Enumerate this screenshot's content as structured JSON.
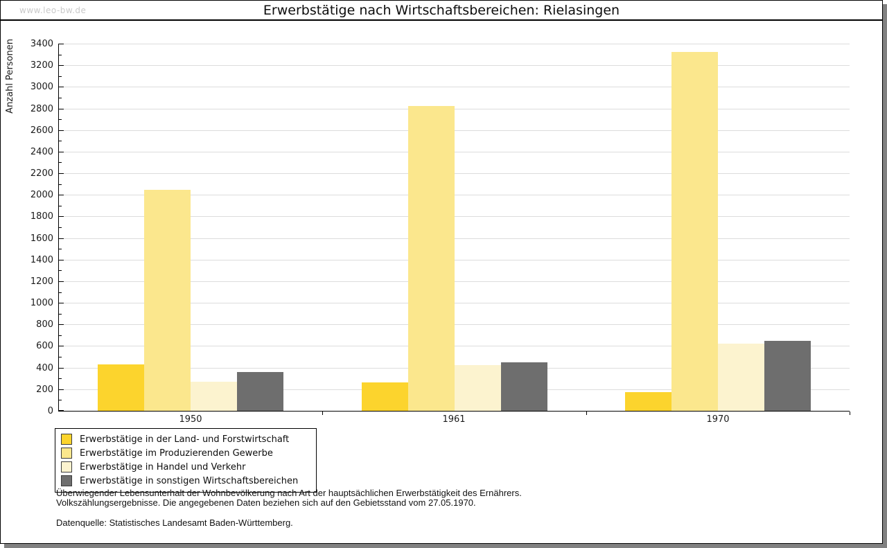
{
  "window": {
    "watermark": "www.leo-bw.de"
  },
  "chart_data": {
    "type": "bar",
    "title": "Erwerbstätige nach Wirtschaftsbereichen: Rielasingen",
    "xlabel": "",
    "ylabel": "Anzahl Personen",
    "categories": [
      "1950",
      "1961",
      "1970"
    ],
    "series": [
      {
        "name": "Erwerbstätige in der Land- und Forstwirtschaft",
        "color": "#fcd42d",
        "values": [
          430,
          260,
          170
        ]
      },
      {
        "name": "Erwerbstätige im Produzierenden Gewerbe",
        "color": "#fbe78d",
        "values": [
          2045,
          2820,
          3320
        ]
      },
      {
        "name": "Erwerbstätige in Handel und Verkehr",
        "color": "#fcf3cf",
        "values": [
          270,
          425,
          620
        ]
      },
      {
        "name": "Erwerbstätige in sonstigen Wirtschaftsbereichen",
        "color": "#6e6e6e",
        "values": [
          360,
          450,
          650
        ]
      }
    ],
    "ylim": [
      0,
      3400
    ],
    "ytick_step": 200,
    "yminor_step": 100,
    "grid": true,
    "legend_position": "bottom-left"
  },
  "footnotes": {
    "line1": "Überwiegender Lebensunterhalt der Wohnbevölkerung nach Art der hauptsächlichen Erwerbstätigkeit des Ernährers.",
    "line2": "Volkszählungsergebnisse. Die angegebenen Daten beziehen sich auf den Gebietsstand vom 27.05.1970.",
    "source": "Datenquelle: Statistisches Landesamt Baden-Württemberg."
  }
}
